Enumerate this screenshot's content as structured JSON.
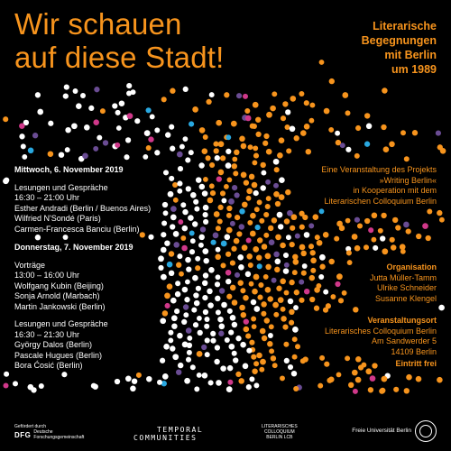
{
  "title": {
    "line1": "Wir schauen",
    "line2": "auf diese Stadt!"
  },
  "subtitle": [
    "Literarische",
    "Begegnungen",
    "mit Berlin",
    "um 1989"
  ],
  "colors": {
    "orange": "#f7941d",
    "white": "#ffffff",
    "purple": "#6a4c93",
    "magenta": "#d0388a",
    "blue": "#29a8e0",
    "background": "#000000"
  },
  "day1": {
    "date": "Mittwoch, 6. November 2019",
    "session_type": "Lesungen und Gespräche",
    "time": "16:30 – 21:00 Uhr",
    "participants": [
      "Esther Andradi (Berlin / Buenos Aires)",
      "Wilfried N'Sondé (Paris)",
      "Carmen-Francesca Banciu (Berlin)"
    ]
  },
  "day2": {
    "date": "Donnerstag, 7. November 2019",
    "block1": {
      "session_type": "Vorträge",
      "time": "13:00 – 16:00 Uhr",
      "participants": [
        "Wolfgang Kubin (Beijing)",
        "Sonja Arnold (Marbach)",
        "Martin Jankowski (Berlin)"
      ]
    },
    "block2": {
      "session_type": "Lesungen und Gespräche",
      "time": "16:30 – 21:30 Uhr",
      "participants": [
        "György Dalos (Berlin)",
        "Pascale Hugues (Berlin)",
        "Bora Ćosić (Berlin)"
      ]
    }
  },
  "project": [
    "Eine Veranstaltung des Projekts",
    "»Writing Berlin«",
    "in Kooperation mit dem",
    "Literarischen Colloquium Berlin"
  ],
  "organisation": {
    "heading": "Organisation",
    "people": [
      "Jutta Müller-Tamm",
      "Ulrike Schneider",
      "Susanne Klengel"
    ]
  },
  "venue": {
    "heading": "Veranstaltungsort",
    "lines": [
      "Literarisches Colloquium Berlin",
      "Am Sandwerder 5",
      "14109 Berlin"
    ]
  },
  "admission": "Eintritt frei",
  "logos": {
    "dfg_small": "Gefördert durch",
    "dfg": "DFG",
    "dfg_full": [
      "Deutsche",
      "Forschungsgemeinschaft"
    ],
    "tc_top": "TEMPORAL",
    "tc_bottom": "COMMUNITIES",
    "lcb": [
      "LITERARISCHES",
      "COLLOQUIUM",
      "BERLIN LCB"
    ],
    "fu": "Freie Universität Berlin"
  }
}
